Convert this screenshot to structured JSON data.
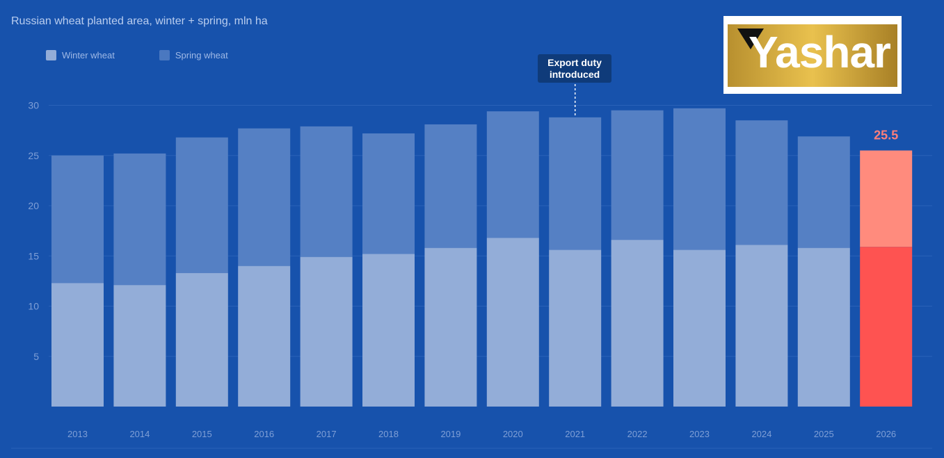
{
  "title": "Russian wheat planted area, winter + spring, mln ha",
  "logo": {
    "text": "Yashar"
  },
  "legend": [
    {
      "label": "Winter wheat",
      "color": "#93add8"
    },
    {
      "label": "Spring wheat",
      "color": "#4a78c0"
    }
  ],
  "annotation": {
    "label": "Export duty introduced",
    "year": "2021"
  },
  "colors": {
    "background": "#1752ac",
    "winter": "#93add8",
    "spring": "#5580c4",
    "highlight_winter": "#fe5351",
    "highlight_spring": "#ff8b7d",
    "highlight_label": "#fe7f7a",
    "axis_text": "#7f9fd6"
  },
  "chart_data": {
    "type": "bar",
    "stacked": true,
    "categories": [
      "2013",
      "2014",
      "2015",
      "2016",
      "2017",
      "2018",
      "2019",
      "2020",
      "2021",
      "2022",
      "2023",
      "2024",
      "2025",
      "2026"
    ],
    "series": [
      {
        "name": "Winter wheat",
        "values": [
          12.3,
          12.1,
          13.3,
          14.0,
          14.9,
          15.2,
          15.8,
          16.8,
          15.6,
          16.6,
          15.6,
          16.1,
          15.8,
          15.9
        ]
      },
      {
        "name": "Spring wheat",
        "values": [
          12.7,
          13.1,
          13.5,
          13.7,
          13.0,
          12.0,
          12.3,
          12.6,
          13.2,
          12.9,
          14.1,
          12.4,
          11.1,
          9.6
        ]
      }
    ],
    "highlight": {
      "category": "2026",
      "label": "25.5"
    },
    "ylim": [
      0,
      30
    ],
    "yticks": [
      5,
      10,
      15,
      20,
      25,
      30
    ],
    "grid": true,
    "legend_position": "top-left"
  }
}
